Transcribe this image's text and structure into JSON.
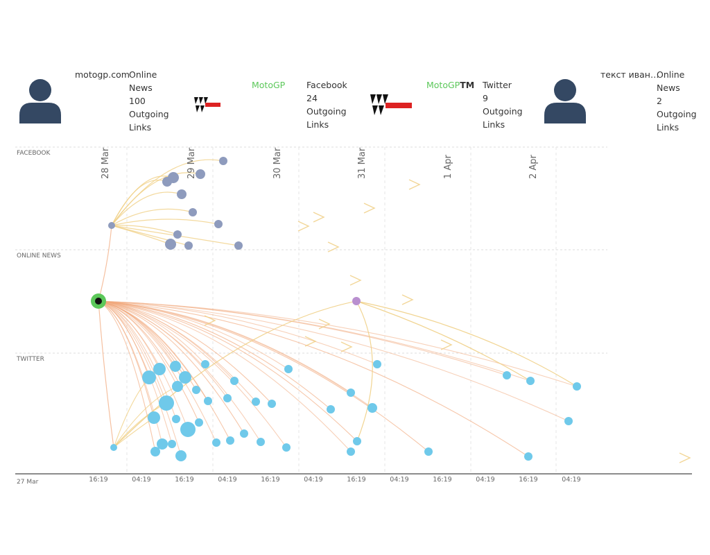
{
  "colors": {
    "accent_green": "#5cc85a",
    "facebook_node": "#8e9bbd",
    "twitter_node": "#6fc9ea",
    "news_node": "#b98fcf",
    "edge_orange": "#f0a070",
    "edge_yellow": "#f0cf85",
    "avatar": "#344863",
    "grid": "#dddddd"
  },
  "cards": [
    {
      "name": "motogp.com",
      "icon": "user-avatar-icon",
      "stats": [
        "Online",
        "News",
        "100",
        "Outgoing",
        "Links"
      ]
    },
    {
      "name": "MotoGP",
      "icon": "motogp-logo-icon",
      "stats": [
        "Facebook",
        "24",
        "Outgoing",
        "Links"
      ]
    },
    {
      "name": "MotoGP",
      "name_suffix": "TM",
      "icon": "motogp-logo-icon",
      "stats": [
        "Twitter",
        "9",
        "Outgoing",
        "Links"
      ]
    },
    {
      "name": "текст иван…",
      "icon": "user-avatar-icon",
      "stats": [
        "Online",
        "News",
        "2",
        "Outgoing",
        "Links"
      ]
    }
  ],
  "chart_data": {
    "type": "scatter",
    "description_kind": "timeline network graph",
    "lanes": [
      "FACEBOOK",
      "ONLINE NEWS",
      "TWITTER"
    ],
    "date_labels": [
      "28 Mar",
      "29 Mar",
      "30 Mar",
      "31 Mar",
      "1 Apr",
      "2 Apr"
    ],
    "start_label": "27 Mar",
    "time_ticks": [
      "16:19",
      "04:19",
      "16:19",
      "04:19",
      "16:19",
      "04:19",
      "16:19",
      "04:19",
      "16:19",
      "04:19",
      "16:19",
      "04:19"
    ],
    "hub": {
      "lane": "ONLINE NEWS",
      "time": "28 Mar 00:30"
    },
    "secondary_news_node": {
      "lane": "ONLINE NEWS",
      "time": "31 Mar 00:19"
    },
    "facebook_nodes_count": 13,
    "twitter_nodes_count": 44
  }
}
